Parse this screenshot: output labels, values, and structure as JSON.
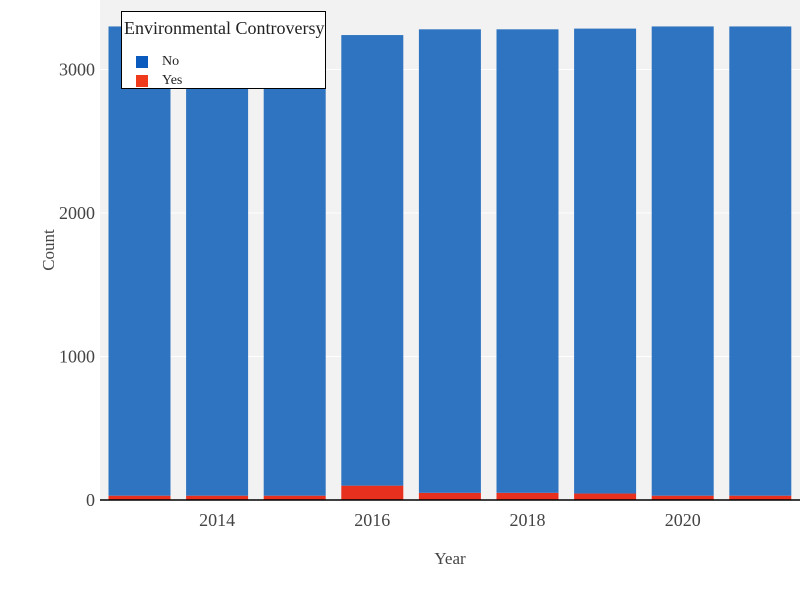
{
  "chart_data": {
    "type": "bar",
    "stacked": true,
    "categories": [
      "2013",
      "2014",
      "2015",
      "2016",
      "2017",
      "2018",
      "2019",
      "2020",
      "2021"
    ],
    "series": [
      {
        "name": "Yes",
        "color": "#e8301e",
        "values": [
          30,
          30,
          30,
          100,
          50,
          50,
          45,
          30,
          30
        ]
      },
      {
        "name": "No",
        "color": "#2f74c0",
        "values": [
          3270,
          3270,
          3270,
          3140,
          3230,
          3230,
          3240,
          3270,
          3270
        ]
      }
    ],
    "title": "",
    "xlabel": "Year",
    "ylabel": "Count",
    "ylim": [
      0,
      3400
    ],
    "yticks": [
      0,
      1000,
      2000,
      3000
    ],
    "xtick_labels": [
      "2014",
      "2016",
      "2018",
      "2020"
    ],
    "grid": true,
    "legend": {
      "title": "Environmental Controversy",
      "position": "top-left",
      "items": [
        {
          "label": "No",
          "color": "#0a5bbd"
        },
        {
          "label": "Yes",
          "color": "#f03a1c"
        }
      ]
    }
  }
}
